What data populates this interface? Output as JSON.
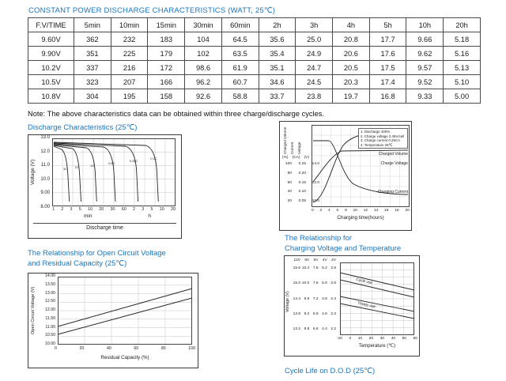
{
  "page": {
    "title": "CONSTANT POWER DISCHARGE CHARACTERISTICS (WATT, 25℃)",
    "note": "Note: The above characteristics data can be obtained within three charge/discharge cycles."
  },
  "table": {
    "headers": [
      "F.V/TIME",
      "5min",
      "10min",
      "15min",
      "30min",
      "60min",
      "2h",
      "3h",
      "4h",
      "5h",
      "10h",
      "20h"
    ],
    "rows": [
      [
        "9.60V",
        "362",
        "232",
        "183",
        "104",
        "64.5",
        "35.6",
        "25.0",
        "20.8",
        "17.7",
        "9.66",
        "5.18"
      ],
      [
        "9.90V",
        "351",
        "225",
        "179",
        "102",
        "63.5",
        "35.4",
        "24.9",
        "20.6",
        "17.6",
        "9.62",
        "5.16"
      ],
      [
        "10.2V",
        "337",
        "216",
        "172",
        "98.6",
        "61.9",
        "35.1",
        "24.7",
        "20.5",
        "17.5",
        "9.57",
        "5.13"
      ],
      [
        "10.5V",
        "323",
        "207",
        "166",
        "96.2",
        "60.7",
        "34.6",
        "24.5",
        "20.3",
        "17.4",
        "9.52",
        "5.10"
      ],
      [
        "10.8V",
        "304",
        "195",
        "158",
        "92.6",
        "58.8",
        "33.7",
        "23.8",
        "19.7",
        "16.8",
        "9.33",
        "5.00"
      ]
    ]
  },
  "sections": {
    "discharge": "Discharge Characteristics (25℃)",
    "ocv_line1": "The Relationship for Open Circuit Voltage",
    "ocv_line2": "and Residual Capacity (25℃)",
    "charging_line1": "The Relationship for",
    "charging_line2": "Charging Voltage and Temperature",
    "cycle_life": "Cycle Life on D.O.D (25℃)"
  },
  "charts": {
    "discharge": {
      "y_label": "Voltage (V)",
      "y_ticks": [
        "13.0",
        "12.0",
        "11.0",
        "10.0",
        "9.00",
        "8.00"
      ],
      "x_ticks": [
        "1",
        "2",
        "3",
        "5",
        "10",
        "20",
        "30",
        "60",
        "2",
        "3",
        "5",
        "10",
        "20"
      ],
      "curve_labels": [
        "3C",
        "2C",
        "1C",
        "0.6C",
        "0.25C",
        "0.1C"
      ],
      "x_group_min": "min",
      "x_group_h": "h",
      "x_label": "Discharge time"
    },
    "charge": {
      "axis_labels": [
        "Charged Volume",
        "Current",
        "Voltage"
      ],
      "axis_units": [
        "(%)",
        "(CA)",
        "(V)"
      ],
      "volume_ticks": [
        "100",
        "80",
        "60",
        "40",
        "20"
      ],
      "current_ticks": [
        "0.25",
        "0.20",
        "0.15",
        "0.10",
        "0.05"
      ],
      "voltage_ticks": [
        "14.0",
        "12.0",
        "10.0"
      ],
      "legend": [
        "1. Discharge 100%",
        "2. Charge voltage 2.45V/cell",
        "3. Charge current 0.25CA",
        "4. Temperature 25℃"
      ],
      "curve_labels": {
        "volume": "Charged Volume",
        "voltage": "Charge Voltage",
        "current": "Charging Current"
      },
      "x_ticks": [
        "0",
        "2",
        "4",
        "6",
        "8",
        "10",
        "12",
        "14",
        "16",
        "18",
        "20"
      ],
      "x_label": "Charging time(hours)"
    },
    "ocv": {
      "y_label": "Open Circuit Voltage (V)",
      "y_ticks": [
        "14.00",
        "13.50",
        "13.00",
        "12.50",
        "12.00",
        "11.50",
        "11.00",
        "10.50",
        "10.00"
      ],
      "x_ticks": [
        "0",
        "20",
        "40",
        "60",
        "80",
        "100"
      ],
      "x_label": "Residual Capacity (%)"
    },
    "charging_voltage": {
      "y_label": "Voltage (V)",
      "col_headers": [
        "12V",
        "8V",
        "6V",
        "4V",
        "2V"
      ],
      "scale_rows": [
        [
          "15.6",
          "10.4",
          "7.8",
          "5.2",
          "2.6"
        ],
        [
          "15.0",
          "10.0",
          "7.5",
          "5.0",
          "2.5"
        ],
        [
          "14.4",
          "9.6",
          "7.2",
          "4.8",
          "2.4"
        ],
        [
          "13.8",
          "9.2",
          "6.9",
          "4.6",
          "2.3"
        ],
        [
          "13.2",
          "8.8",
          "6.6",
          "4.4",
          "2.2"
        ]
      ],
      "band_labels": [
        "Cycle use",
        "Trickle use"
      ],
      "x_ticks": [
        "-10",
        "0",
        "10",
        "20",
        "30",
        "40",
        "50",
        "60"
      ],
      "x_label": "Temperature (℃)"
    }
  }
}
